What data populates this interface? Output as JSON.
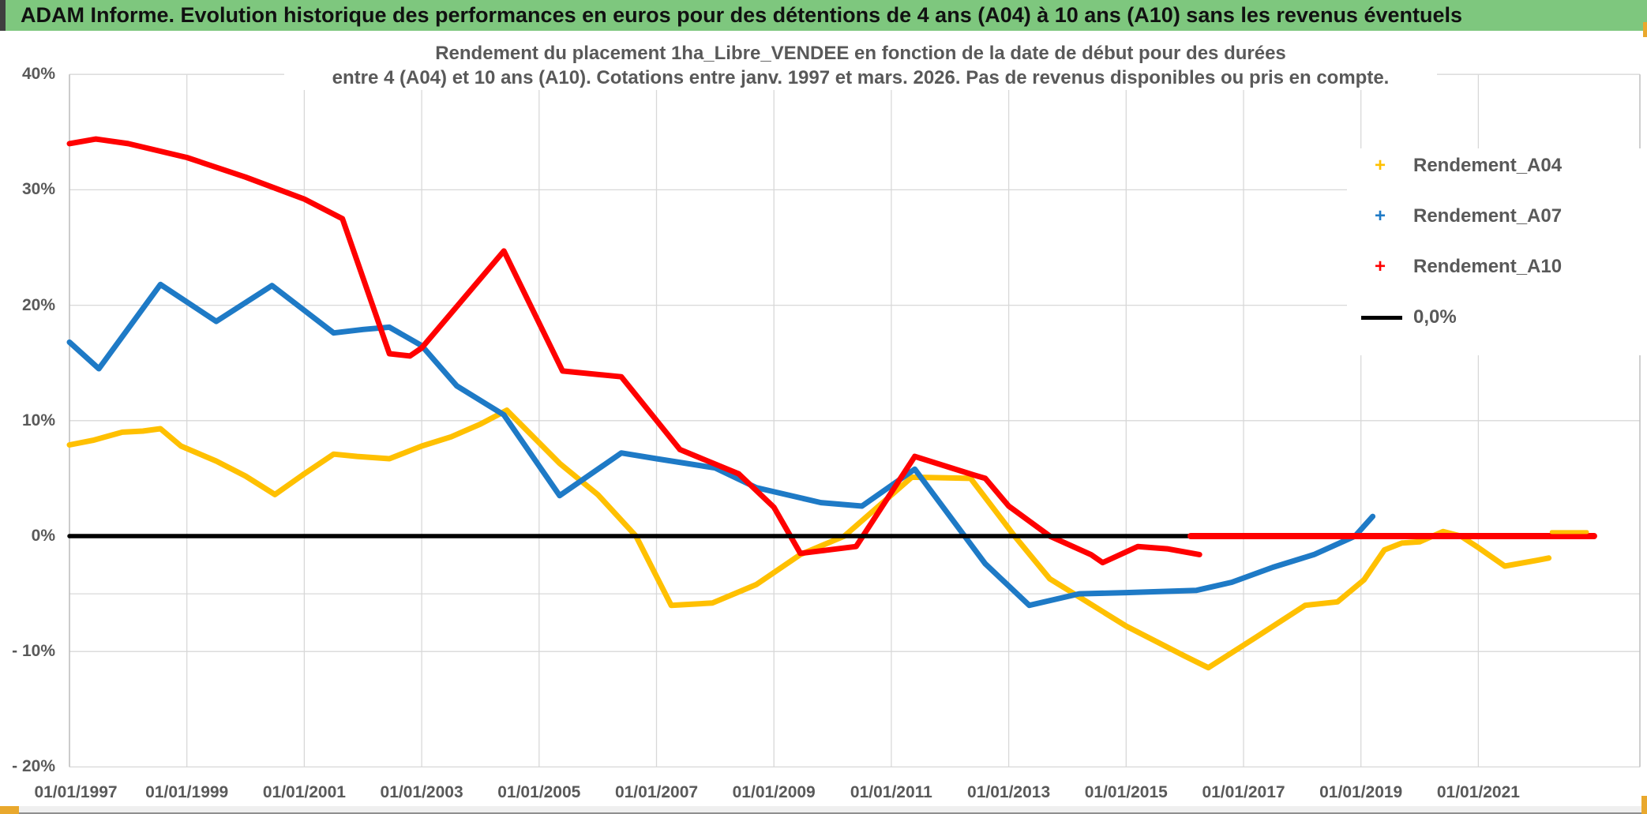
{
  "header": {
    "title": "ADAM Informe. Evolution historique des performances en euros pour des détentions de 4 ans (A04) à 10 ans (A10) sans les revenus éventuels",
    "bg_color": "#7EC77E"
  },
  "accents": {
    "gold": "#E9A82D",
    "dark_edge": "#3f3f3f"
  },
  "chart_data": {
    "type": "line",
    "title_line1": "Rendement du placement 1ha_Libre_VENDEE en fonction de la date de début pour des durées",
    "title_line2": "entre 4 (A04) et 10 ans (A10). Cotations entre janv. 1997 et mars. 2026. Pas de revenus disponibles ou pris en compte.",
    "grid_color": "#d8d8d8",
    "axis_label_color": "#595959",
    "x_domain": [
      1997.0,
      2023.75
    ],
    "y_domain": [
      -20,
      40
    ],
    "grid_y_values": [
      40,
      30,
      20,
      10,
      -5,
      -10,
      -20
    ],
    "y_ticks": [
      {
        "label": "40%",
        "value": 40
      },
      {
        "label": "30%",
        "value": 30
      },
      {
        "label": "20%",
        "value": 20
      },
      {
        "label": "10%",
        "value": 10
      },
      {
        "label": "0%",
        "value": 0
      },
      {
        "label": "- 10%",
        "value": -10
      },
      {
        "label": "- 20%",
        "value": -20
      }
    ],
    "x_ticks": [
      {
        "label": "01/01/1997",
        "year": 1997
      },
      {
        "label": "01/01/1999",
        "year": 1999
      },
      {
        "label": "01/01/2001",
        "year": 2001
      },
      {
        "label": "01/01/2003",
        "year": 2003
      },
      {
        "label": "01/01/2005",
        "year": 2005
      },
      {
        "label": "01/01/2007",
        "year": 2007
      },
      {
        "label": "01/01/2009",
        "year": 2009
      },
      {
        "label": "01/01/2011",
        "year": 2011
      },
      {
        "label": "01/01/2013",
        "year": 2013
      },
      {
        "label": "01/01/2015",
        "year": 2015
      },
      {
        "label": "01/01/2017",
        "year": 2017
      },
      {
        "label": "01/01/2019",
        "year": 2019
      },
      {
        "label": "01/01/2021",
        "year": 2021
      }
    ],
    "series": [
      {
        "name": "Rendement_A04",
        "color": "#FFC000",
        "width": 7,
        "points": [
          [
            1997.0,
            7.9
          ],
          [
            1997.4,
            8.3
          ],
          [
            1997.9,
            9.0
          ],
          [
            1998.25,
            9.1
          ],
          [
            1998.55,
            9.3
          ],
          [
            1998.9,
            7.8
          ],
          [
            1999.5,
            6.5
          ],
          [
            2000.0,
            5.2
          ],
          [
            2000.5,
            3.6
          ],
          [
            2001.0,
            5.4
          ],
          [
            2001.5,
            7.1
          ],
          [
            2001.9,
            6.9
          ],
          [
            2002.45,
            6.7
          ],
          [
            2003.0,
            7.8
          ],
          [
            2003.5,
            8.6
          ],
          [
            2004.0,
            9.7
          ],
          [
            2004.45,
            10.9
          ],
          [
            2005.35,
            6.3
          ],
          [
            2006.0,
            3.6
          ],
          [
            2006.65,
            0.0
          ],
          [
            2007.25,
            -6.0
          ],
          [
            2007.95,
            -5.8
          ],
          [
            2008.7,
            -4.2
          ],
          [
            2009.45,
            -1.6
          ],
          [
            2010.2,
            0.0
          ],
          [
            2011.35,
            5.1
          ],
          [
            2012.35,
            5.0
          ],
          [
            2013.1,
            0.0
          ],
          [
            2013.7,
            -3.7
          ],
          [
            2014.05,
            -4.8
          ],
          [
            2015.0,
            -7.8
          ],
          [
            2016.0,
            -10.4
          ],
          [
            2016.4,
            -11.4
          ],
          [
            2017.2,
            -8.8
          ],
          [
            2018.05,
            -6.0
          ],
          [
            2018.6,
            -5.7
          ],
          [
            2019.05,
            -3.8
          ],
          [
            2019.4,
            -1.2
          ],
          [
            2019.7,
            -0.6
          ],
          [
            2020.0,
            -0.5
          ],
          [
            2020.4,
            0.4
          ],
          [
            2020.7,
            0.0
          ],
          [
            2021.0,
            -1.0
          ],
          [
            2021.45,
            -2.6
          ],
          [
            2022.0,
            -2.1
          ],
          [
            2022.2,
            -1.9
          ]
        ]
      },
      {
        "name": "Rendement_A07",
        "color": "#1E7AC6",
        "width": 7,
        "points": [
          [
            1997.0,
            16.8
          ],
          [
            1997.5,
            14.5
          ],
          [
            1998.55,
            21.8
          ],
          [
            1999.5,
            18.6
          ],
          [
            2000.45,
            21.7
          ],
          [
            2001.5,
            17.6
          ],
          [
            2002.0,
            17.9
          ],
          [
            2002.45,
            18.1
          ],
          [
            2003.0,
            16.5
          ],
          [
            2003.6,
            13.0
          ],
          [
            2004.4,
            10.5
          ],
          [
            2005.35,
            3.5
          ],
          [
            2006.4,
            7.2
          ],
          [
            2007.0,
            6.7
          ],
          [
            2008.0,
            5.9
          ],
          [
            2008.7,
            4.2
          ],
          [
            2009.8,
            2.9
          ],
          [
            2010.5,
            2.6
          ],
          [
            2011.4,
            5.8
          ],
          [
            2012.6,
            -2.4
          ],
          [
            2013.35,
            -6.0
          ],
          [
            2014.2,
            -5.0
          ],
          [
            2015.0,
            -4.9
          ],
          [
            2016.2,
            -4.7
          ],
          [
            2016.8,
            -4.0
          ],
          [
            2017.5,
            -2.7
          ],
          [
            2018.2,
            -1.6
          ],
          [
            2018.9,
            0.0
          ],
          [
            2019.2,
            1.7
          ]
        ]
      },
      {
        "name": "Rendement_A10",
        "color": "#FF0000",
        "width": 7,
        "points": [
          [
            1997.0,
            34.0
          ],
          [
            1997.45,
            34.4
          ],
          [
            1998.0,
            34.0
          ],
          [
            1999.0,
            32.8
          ],
          [
            2000.0,
            31.1
          ],
          [
            2001.0,
            29.2
          ],
          [
            2001.65,
            27.5
          ],
          [
            2002.45,
            15.8
          ],
          [
            2002.8,
            15.6
          ],
          [
            2003.0,
            16.3
          ],
          [
            2004.4,
            24.7
          ],
          [
            2005.4,
            14.3
          ],
          [
            2006.4,
            13.8
          ],
          [
            2007.4,
            7.5
          ],
          [
            2008.4,
            5.4
          ],
          [
            2009.0,
            2.5
          ],
          [
            2009.45,
            -1.5
          ],
          [
            2010.4,
            -0.9
          ],
          [
            2011.4,
            6.9
          ],
          [
            2012.4,
            5.3
          ],
          [
            2012.6,
            5.0
          ],
          [
            2013.0,
            2.6
          ],
          [
            2013.7,
            0.0
          ],
          [
            2014.4,
            -1.6
          ],
          [
            2014.6,
            -2.3
          ],
          [
            2015.2,
            -0.9
          ],
          [
            2015.7,
            -1.1
          ],
          [
            2016.25,
            -1.6
          ]
        ]
      },
      {
        "name": "zero-line",
        "color": "#000000",
        "width": 5.5,
        "points": [
          [
            1997.0,
            0.0
          ],
          [
            2016.1,
            0.0
          ]
        ]
      },
      {
        "name": "A10-zero-tail",
        "color": "#FF0000",
        "width": 8,
        "points": [
          [
            2016.1,
            0.0
          ],
          [
            2022.97,
            0.0
          ]
        ]
      },
      {
        "name": "A04-zero-tail",
        "color": "#FFC000",
        "width": 5,
        "points": [
          [
            2022.25,
            0.35
          ],
          [
            2022.85,
            0.35
          ]
        ]
      }
    ],
    "legend": [
      {
        "label": "Rendement_A04",
        "marker": "+",
        "color": "#FFC000"
      },
      {
        "label": "Rendement_A07",
        "marker": "+",
        "color": "#1E7AC6"
      },
      {
        "label": "Rendement_A10",
        "marker": "+",
        "color": "#FF0000"
      },
      {
        "label": "0,0%",
        "marker": "line",
        "color": "#000000"
      }
    ]
  }
}
